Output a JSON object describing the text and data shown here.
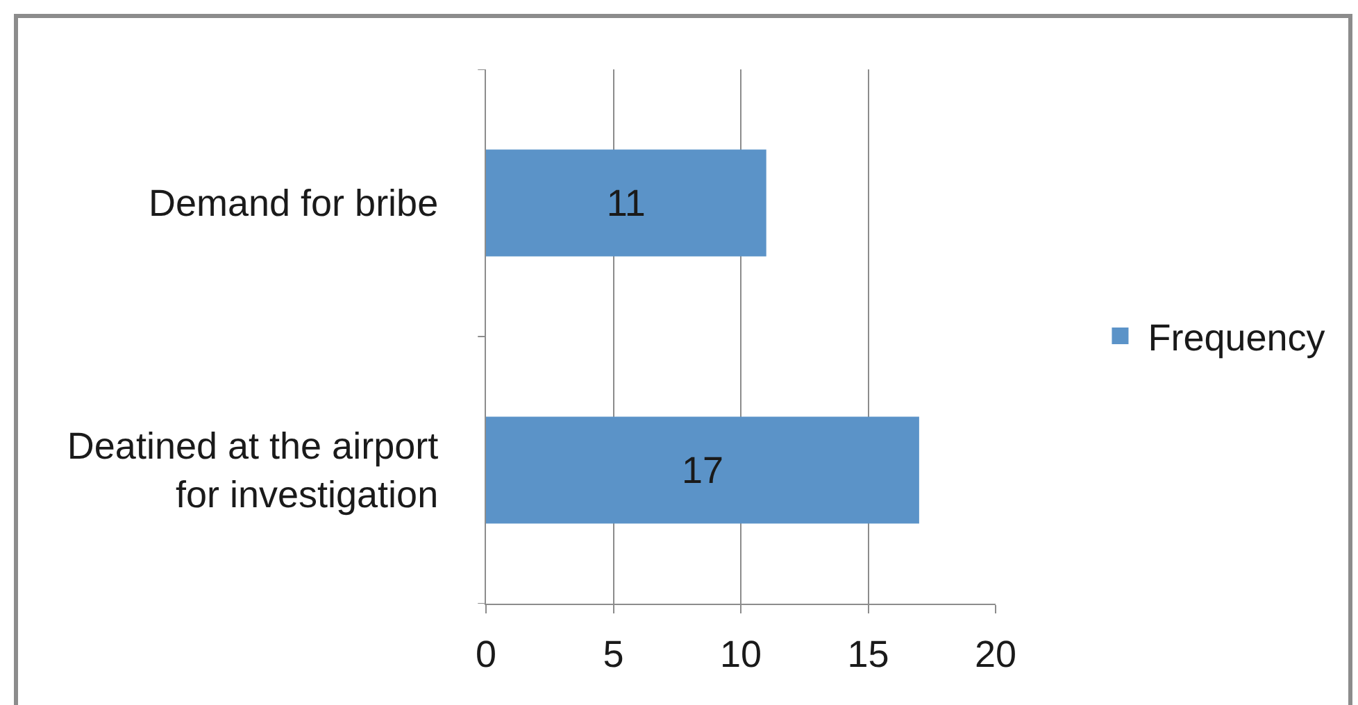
{
  "chart_data": {
    "type": "bar",
    "orientation": "horizontal",
    "categories": [
      "Demand for bribe",
      "Deatined at the airport for investigation"
    ],
    "series": [
      {
        "name": "Frequency",
        "color": "#5b93c8",
        "values": [
          11,
          17
        ]
      }
    ],
    "xlim": [
      0,
      20
    ],
    "xticks": [
      0,
      5,
      10,
      15,
      20
    ],
    "grid": "x",
    "legend": "right",
    "data_labels": true
  }
}
